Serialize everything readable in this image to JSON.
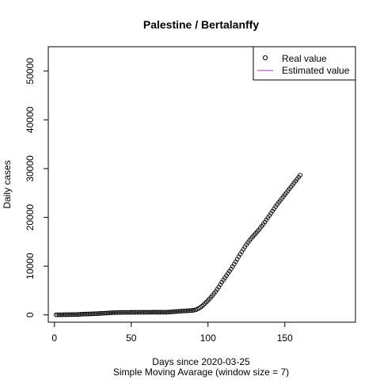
{
  "chart_data": {
    "type": "scatter",
    "title": "Palestine / Bertalanffy",
    "xlabel": "Days since 2020-03-25",
    "xlabel_sub": "Simple Moving Avarage (window size = 7)",
    "ylabel": "Daily cases",
    "xlim": [
      -4,
      196
    ],
    "ylim": [
      -1500,
      55000
    ],
    "x_ticks": [
      0,
      50,
      100,
      150
    ],
    "x_tick_labels": [
      "0",
      "50",
      "100",
      "150"
    ],
    "y_ticks": [
      0,
      10000,
      20000,
      30000,
      40000,
      50000
    ],
    "y_tick_labels": [
      "0",
      "10000",
      "20000",
      "30000",
      "40000",
      "50000"
    ],
    "grid": false,
    "legend_position": "top-right",
    "legend": [
      {
        "label": "Real value",
        "symbol": "circle",
        "color": "#000000"
      },
      {
        "label": "Estimated value",
        "symbol": "line",
        "color": "#9b30c8"
      }
    ],
    "series": [
      {
        "name": "Real value",
        "symbol": "circle",
        "color": "#000000",
        "x": [
          1,
          2,
          3,
          4,
          5,
          6,
          7,
          8,
          9,
          10,
          11,
          12,
          13,
          14,
          15,
          16,
          17,
          18,
          19,
          20,
          21,
          22,
          23,
          24,
          25,
          26,
          27,
          28,
          29,
          30,
          31,
          32,
          33,
          34,
          35,
          36,
          37,
          38,
          39,
          40,
          41,
          42,
          43,
          44,
          45,
          46,
          47,
          48,
          49,
          50,
          51,
          52,
          53,
          54,
          55,
          56,
          57,
          58,
          59,
          60,
          61,
          62,
          63,
          64,
          65,
          66,
          67,
          68,
          69,
          70,
          71,
          72,
          73,
          74,
          75,
          76,
          77,
          78,
          79,
          80,
          81,
          82,
          83,
          84,
          85,
          86,
          87,
          88,
          89,
          90,
          91,
          92,
          93,
          94,
          95,
          96,
          97,
          98,
          99,
          100,
          101,
          102,
          103,
          104,
          105,
          106,
          107,
          108,
          109,
          110,
          111,
          112,
          113,
          114,
          115,
          116,
          117,
          118,
          119,
          120,
          121,
          122,
          123,
          124,
          125,
          126,
          127,
          128,
          129,
          130,
          131,
          132,
          133,
          134,
          135,
          136,
          137,
          138,
          139,
          140,
          141,
          142,
          143,
          144,
          145,
          146,
          147,
          148,
          149,
          150,
          151,
          152,
          153,
          154,
          155,
          156,
          157,
          158,
          159,
          160
        ],
        "y": [
          17,
          20,
          24,
          28,
          32,
          38,
          43,
          47,
          52,
          56,
          61,
          65,
          70,
          75,
          85,
          100,
          120,
          140,
          160,
          175,
          185,
          195,
          205,
          215,
          225,
          240,
          255,
          270,
          285,
          300,
          320,
          340,
          360,
          380,
          400,
          420,
          440,
          455,
          470,
          480,
          490,
          495,
          500,
          505,
          510,
          513,
          516,
          519,
          522,
          525,
          527,
          529,
          531,
          533,
          535,
          536,
          537,
          538,
          539,
          540,
          541,
          542,
          543,
          544,
          545,
          546,
          547,
          548,
          549,
          550,
          552,
          555,
          560,
          570,
          585,
          605,
          630,
          660,
          690,
          720,
          740,
          760,
          780,
          800,
          820,
          840,
          860,
          880,
          905,
          930,
          980,
          1060,
          1180,
          1350,
          1550,
          1780,
          2050,
          2350,
          2650,
          2950,
          3300,
          3650,
          4000,
          4400,
          4800,
          5250,
          5700,
          6200,
          6700,
          7150,
          7600,
          8050,
          8500,
          8950,
          9400,
          9900,
          10400,
          10900,
          11400,
          11950,
          12450,
          12950,
          13450,
          13950,
          14400,
          14850,
          15250,
          15650,
          16000,
          16350,
          16700,
          17050,
          17400,
          17800,
          18200,
          18600,
          19050,
          19500,
          19950,
          20400,
          20850,
          21300,
          21750,
          22200,
          22650,
          23050,
          23450,
          23850,
          24250,
          24650,
          25050,
          25450,
          25850,
          26250,
          26650,
          27050,
          27450,
          27850,
          28250,
          28650
        ],
        "x_note": ""
      }
    ]
  }
}
